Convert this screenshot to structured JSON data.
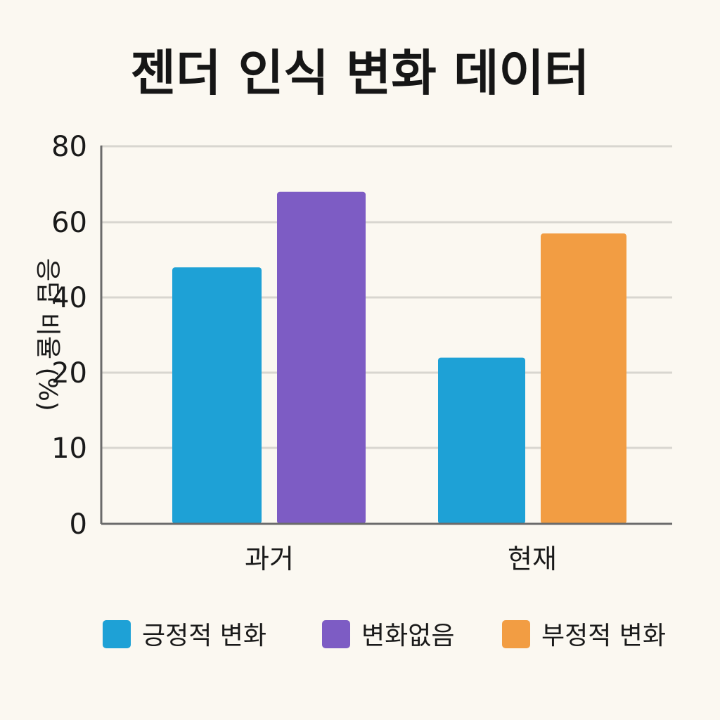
{
  "chart_data": {
    "type": "bar",
    "title": "젠더 인식 변화 데이터",
    "ylabel": "응답 비율 (%)",
    "xlabel": "",
    "yticks": [
      0,
      10,
      20,
      40,
      60,
      80
    ],
    "grid": true,
    "legend_position": "bottom",
    "categories": [
      "과거",
      "현재"
    ],
    "bars": [
      {
        "category": "과거",
        "series": "긍정적 변화",
        "value": 48
      },
      {
        "category": "과거",
        "series": "변화없음",
        "value": 68
      },
      {
        "category": "현재",
        "series": "긍정적 변화",
        "value": 24
      },
      {
        "category": "현재",
        "series": "부정적 변화",
        "value": 57
      }
    ],
    "series": [
      {
        "name": "긍정적 변화",
        "color": "#1ea1d6"
      },
      {
        "name": "변화없음",
        "color": "#7d5cc4"
      },
      {
        "name": "부정적 변화",
        "color": "#f29d43"
      }
    ]
  }
}
